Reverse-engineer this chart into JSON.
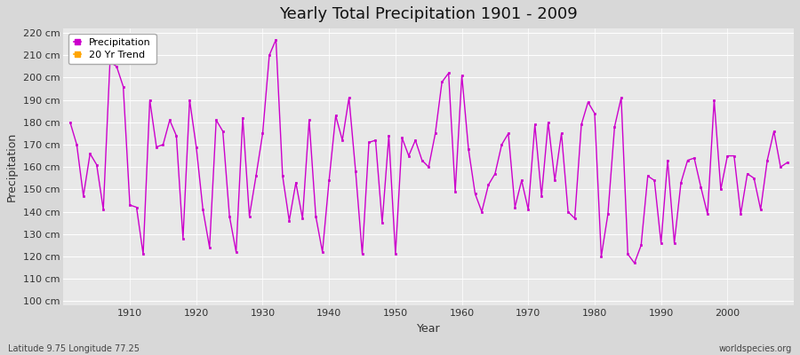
{
  "title": "Yearly Total Precipitation 1901 - 2009",
  "xlabel": "Year",
  "ylabel": "Precipitation",
  "lat_lon_label": "Latitude 9.75 Longitude 77.25",
  "source_label": "worldspecies.org",
  "line_color": "#CC00CC",
  "trend_color": "#FFA500",
  "bg_outer": "#d8d8d8",
  "bg_plot": "#e8e8e8",
  "grid_color": "#ffffff",
  "ylim": [
    98,
    222
  ],
  "yticks": [
    100,
    110,
    120,
    130,
    140,
    150,
    160,
    170,
    180,
    190,
    200,
    210,
    220
  ],
  "xlim": [
    1900,
    2010
  ],
  "xticks": [
    1910,
    1920,
    1930,
    1940,
    1950,
    1960,
    1970,
    1980,
    1990,
    2000
  ],
  "years": [
    1901,
    1902,
    1903,
    1904,
    1905,
    1906,
    1907,
    1908,
    1909,
    1910,
    1911,
    1912,
    1913,
    1914,
    1915,
    1916,
    1917,
    1918,
    1919,
    1920,
    1921,
    1922,
    1923,
    1924,
    1925,
    1926,
    1927,
    1928,
    1929,
    1930,
    1931,
    1932,
    1933,
    1934,
    1935,
    1936,
    1937,
    1938,
    1939,
    1940,
    1941,
    1942,
    1943,
    1944,
    1945,
    1946,
    1947,
    1948,
    1949,
    1950,
    1951,
    1952,
    1953,
    1954,
    1955,
    1956,
    1957,
    1958,
    1959,
    1960,
    1961,
    1962,
    1963,
    1964,
    1965,
    1966,
    1967,
    1968,
    1969,
    1970,
    1971,
    1972,
    1973,
    1974,
    1975,
    1976,
    1977,
    1978,
    1979,
    1980,
    1981,
    1982,
    1983,
    1984,
    1985,
    1986,
    1987,
    1988,
    1989,
    1990,
    1991,
    1992,
    1993,
    1994,
    1995,
    1996,
    1997,
    1998,
    1999,
    2000,
    2001,
    2002,
    2003,
    2004,
    2005,
    2006,
    2007,
    2008,
    2009
  ],
  "values": [
    180,
    170,
    147,
    166,
    161,
    141,
    207,
    205,
    196,
    143,
    142,
    121,
    190,
    169,
    170,
    181,
    174,
    128,
    190,
    169,
    141,
    124,
    181,
    176,
    138,
    122,
    182,
    138,
    156,
    175,
    210,
    217,
    156,
    136,
    153,
    137,
    181,
    138,
    122,
    154,
    183,
    172,
    191,
    158,
    121,
    171,
    172,
    135,
    174,
    121,
    173,
    165,
    172,
    163,
    160,
    175,
    198,
    202,
    149,
    201,
    168,
    148,
    140,
    152,
    157,
    170,
    175,
    142,
    154,
    141,
    179,
    147,
    180,
    154,
    175,
    140,
    137,
    179,
    189,
    184,
    120,
    139,
    178,
    191,
    121,
    117,
    125,
    156,
    154,
    126,
    163,
    126,
    153,
    163,
    164,
    151,
    139,
    190,
    150,
    165,
    165,
    139,
    157,
    155,
    141,
    163,
    176,
    160,
    162
  ]
}
